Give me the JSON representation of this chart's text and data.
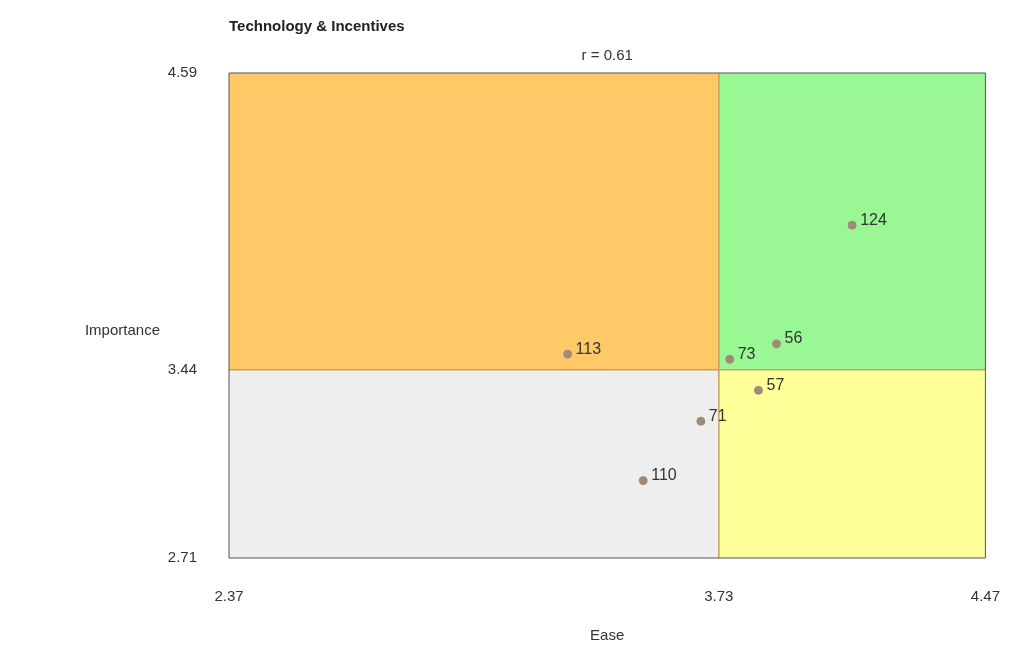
{
  "chart_data": {
    "type": "scatter",
    "title": "Technology & Incentives",
    "xlabel": "Ease",
    "ylabel": "Importance",
    "annotations": [
      "r = 0.61",
      {
        "text": "124",
        "x": 4.1,
        "y": 4.0
      },
      {
        "text": "113",
        "x": 3.31,
        "y": 3.5
      },
      {
        "text": "73",
        "x": 3.76,
        "y": 3.48
      },
      {
        "text": "56",
        "x": 3.89,
        "y": 3.54
      },
      {
        "text": "57",
        "x": 3.84,
        "y": 3.36
      },
      {
        "text": "71",
        "x": 3.68,
        "y": 3.24
      },
      {
        "text": "110",
        "x": 3.52,
        "y": 3.01
      }
    ],
    "x": [
      4.1,
      3.31,
      3.76,
      3.89,
      3.84,
      3.68,
      3.52
    ],
    "series": [
      {
        "color": "#a08a78",
        "values": [
          4.0,
          3.5,
          3.48,
          3.54,
          3.36,
          3.24,
          3.01
        ]
      }
    ],
    "xlim": [
      2.37,
      4.47
    ],
    "ylim": [
      2.71,
      4.59
    ],
    "xticks": [
      2.37,
      3.73,
      4.47
    ],
    "yticks": [
      2.71,
      3.44,
      4.59
    ],
    "ref_lines": [
      {
        "axis": "x",
        "value": 3.73,
        "color": "#c8a060"
      },
      {
        "axis": "y",
        "value": 3.44,
        "color": "#c8a060"
      }
    ],
    "grid": false,
    "legend": false,
    "marker": "circle"
  }
}
